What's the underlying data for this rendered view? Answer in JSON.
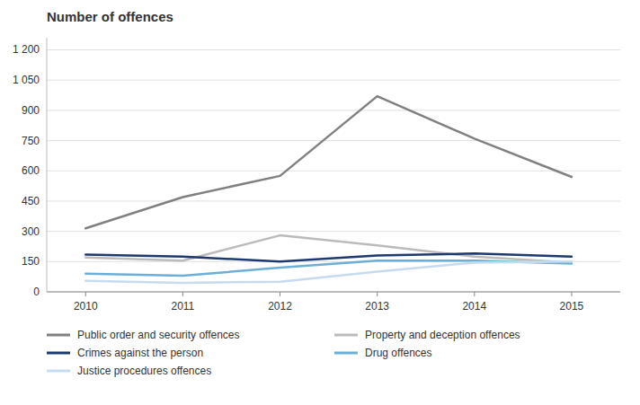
{
  "chart_data": {
    "type": "line",
    "title": "Number of offences",
    "x": [
      2010,
      2011,
      2012,
      2013,
      2014,
      2015
    ],
    "series": [
      {
        "name": "Public order and security offences",
        "color": "#808080",
        "values": [
          315,
          470,
          575,
          970,
          760,
          570
        ]
      },
      {
        "name": "Property and deception offences",
        "color": "#BBBBBB",
        "values": [
          170,
          155,
          280,
          230,
          175,
          145
        ]
      },
      {
        "name": "Crimes against the person",
        "color": "#1C3A6E",
        "values": [
          185,
          175,
          150,
          180,
          190,
          175
        ]
      },
      {
        "name": "Drug offences",
        "color": "#6BAED6",
        "values": [
          90,
          80,
          120,
          155,
          155,
          140
        ]
      },
      {
        "name": "Justice procedures offences",
        "color": "#C6DBEF",
        "values": [
          55,
          45,
          50,
          100,
          145,
          150
        ]
      }
    ],
    "xlim": [
      2009.6,
      2015.5
    ],
    "xticks": [
      2010,
      2011,
      2012,
      2013,
      2014,
      2015
    ],
    "ylim": [
      0,
      1260
    ],
    "yticks": [
      0,
      150,
      300,
      450,
      600,
      750,
      900,
      {
        "value": 1050,
        "label": "1 050"
      },
      {
        "value": 1200,
        "label": "1 200"
      }
    ],
    "grid": true,
    "legend": "bottom"
  }
}
